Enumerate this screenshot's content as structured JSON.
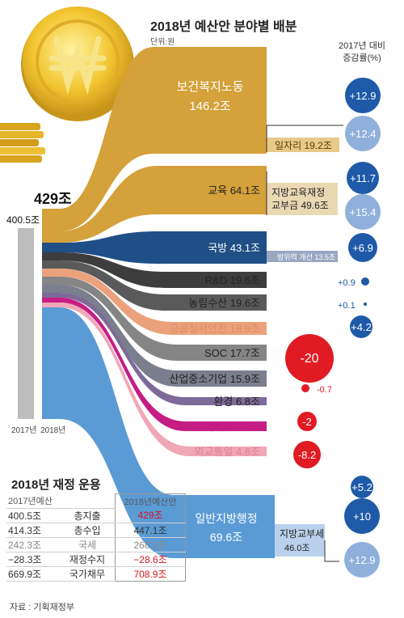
{
  "title": "2018년 예산안 분야별 배분",
  "unit": "단위:원",
  "growth_header_line1": "2017년 대비",
  "growth_header_line2": "증감률(%)",
  "chart_data": {
    "type": "sankey",
    "total_2017": "400.5조",
    "total_2018": "429조",
    "xlabels": [
      "2017년",
      "2018년"
    ],
    "categories": [
      {
        "label": "보건복지노동",
        "value": "146.2조",
        "color": "#d4a13a",
        "growth": "+12.9"
      },
      {
        "label": "교육",
        "value": "64.1조",
        "color": "#d4a13a",
        "growth": "+11.7"
      },
      {
        "label": "국방",
        "value": "43.1조",
        "color": "#1f4f86",
        "growth": "+6.9"
      },
      {
        "label": "R&D",
        "value": "19.6조",
        "color": "#3d3d3d",
        "growth": "+0.9"
      },
      {
        "label": "농림수산",
        "value": "19.6조",
        "color": "#5a5a5a",
        "growth": "+0.1"
      },
      {
        "label": "공공질서안전",
        "value": "18.9조",
        "color": "#eba27c",
        "growth": "+4.2"
      },
      {
        "label": "SOC",
        "value": "17.7조",
        "color": "#858585",
        "growth": "-20"
      },
      {
        "label": "산업중소기업",
        "value": "15.9조",
        "color": "#7b7e8c",
        "growth": "-0.7"
      },
      {
        "label": "환경",
        "value": "6.8조",
        "color": "#7d6a98",
        "growth": "-2"
      },
      {
        "label": "문화체육",
        "value": "6.3조",
        "color": "#c51d84",
        "growth": "-8.2"
      },
      {
        "label": "외교통일",
        "value": "4.8조",
        "color": "#f0a7b6",
        "growth": "+5.2"
      },
      {
        "label": "일반지방행정",
        "value": "69.6조",
        "color": "#5b9bd5",
        "growth": "+10"
      }
    ],
    "sub_items": [
      {
        "label": "일자리",
        "value": "19.2조",
        "growth": "+12.4"
      },
      {
        "label": "지방교육재정 교부금",
        "value": "49.6조",
        "growth": "+15.4"
      },
      {
        "label": "방위력 개선",
        "value": "13.5조"
      },
      {
        "label": "지방교부세",
        "value": "46.0조",
        "growth": "+12.9"
      }
    ]
  },
  "fiscal": {
    "title": "2018년 재정 운용",
    "header_2017": "2017년예산",
    "header_2018": "2018년예산안",
    "rows": [
      {
        "y2017": "400.5조",
        "label": "총지출",
        "y2018": "429조"
      },
      {
        "y2017": "414.3조",
        "label": "총수입",
        "y2018": "447.1조"
      },
      {
        "y2017": "242.3조",
        "label": "국세",
        "y2018": "268.2조"
      },
      {
        "y2017": "−28.3조",
        "label": "재정수지",
        "y2018": "−28.6조"
      },
      {
        "y2017": "669.9조",
        "label": "국가채무",
        "y2018": "708.9조"
      }
    ]
  },
  "source": "자료 : 기획재정부"
}
